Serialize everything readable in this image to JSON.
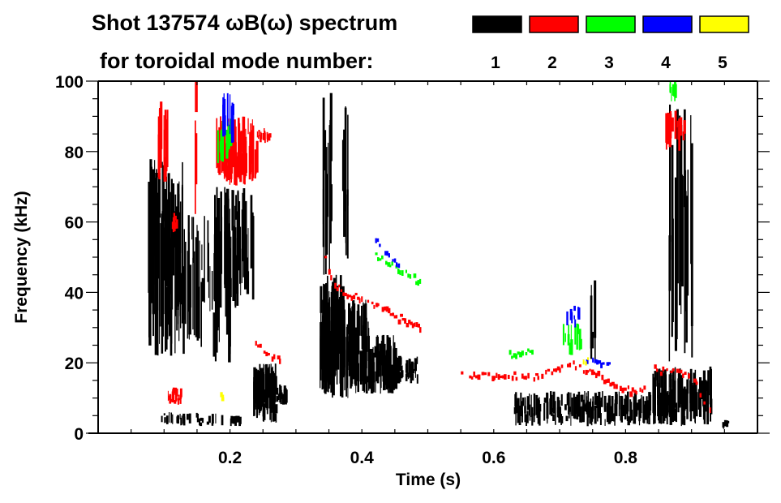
{
  "chart_data": {
    "type": "heatmap",
    "title": "Shot 137574 ωB(ω) spectrum",
    "subtitle": "for toroidal mode number:",
    "xlabel": "Time (s)",
    "ylabel": "Frequency (kHz)",
    "xlim": [
      0,
      1.0
    ],
    "ylim": [
      0,
      100
    ],
    "xticks": [
      0.2,
      0.4,
      0.6,
      0.8
    ],
    "xtick_labels": [
      "0.2",
      "0.4",
      "0.6",
      "0.8"
    ],
    "xminor_step": 0.05,
    "yticks": [
      0,
      20,
      40,
      60,
      80,
      100
    ],
    "ytick_labels": [
      "0",
      "20",
      "40",
      "60",
      "80",
      "100"
    ],
    "yminor_step": 5,
    "legend": {
      "placement": "top-right",
      "entries": [
        {
          "mode": "1",
          "color": "#000000"
        },
        {
          "mode": "2",
          "color": "#ff0000"
        },
        {
          "mode": "3",
          "color": "#00ff00"
        },
        {
          "mode": "4",
          "color": "#0000ff"
        },
        {
          "mode": "5",
          "color": "#ffff00"
        }
      ]
    },
    "regions": [
      {
        "mode": 1,
        "t": [
          0.075,
          0.13
        ],
        "f": [
          22,
          78
        ],
        "density": 90
      },
      {
        "mode": 1,
        "t": [
          0.13,
          0.2
        ],
        "f": [
          20,
          62
        ],
        "density": 45
      },
      {
        "mode": 1,
        "t": [
          0.175,
          0.235
        ],
        "f": [
          35,
          70
        ],
        "density": 70
      },
      {
        "mode": 1,
        "t": [
          0.235,
          0.27
        ],
        "f": [
          3,
          20
        ],
        "density": 70
      },
      {
        "mode": 1,
        "t": [
          0.27,
          0.285
        ],
        "f": [
          8,
          14
        ],
        "density": 20
      },
      {
        "mode": 1,
        "t": [
          0.095,
          0.19
        ],
        "f": [
          2,
          6
        ],
        "density": 30
      },
      {
        "mode": 1,
        "t": [
          0.2,
          0.215
        ],
        "f": [
          2,
          5
        ],
        "density": 15
      },
      {
        "mode": 1,
        "t": [
          0.335,
          0.37
        ],
        "f": [
          10,
          45
        ],
        "density": 80
      },
      {
        "mode": 1,
        "t": [
          0.37,
          0.41
        ],
        "f": [
          10,
          38
        ],
        "density": 80
      },
      {
        "mode": 1,
        "t": [
          0.41,
          0.45
        ],
        "f": [
          11,
          28
        ],
        "density": 60
      },
      {
        "mode": 1,
        "t": [
          0.45,
          0.485
        ],
        "f": [
          14,
          22
        ],
        "density": 35
      },
      {
        "mode": 1,
        "t": [
          0.34,
          0.352
        ],
        "f": [
          40,
          100
        ],
        "density": 12
      },
      {
        "mode": 1,
        "t": [
          0.37,
          0.38
        ],
        "f": [
          45,
          95
        ],
        "density": 8
      },
      {
        "mode": 1,
        "t": [
          0.63,
          0.87
        ],
        "f": [
          2,
          12
        ],
        "density": 200
      },
      {
        "mode": 1,
        "t": [
          0.84,
          0.93
        ],
        "f": [
          2,
          19
        ],
        "density": 90
      },
      {
        "mode": 1,
        "t": [
          0.865,
          0.9
        ],
        "f": [
          20,
          95
        ],
        "density": 25
      },
      {
        "mode": 1,
        "t": [
          0.745,
          0.76
        ],
        "f": [
          20,
          45
        ],
        "density": 6
      },
      {
        "mode": 1,
        "t": [
          0.945,
          0.955
        ],
        "f": [
          1,
          4
        ],
        "density": 6
      },
      {
        "mode": 2,
        "t": [
          0.09,
          0.105
        ],
        "f": [
          70,
          95
        ],
        "density": 18
      },
      {
        "mode": 2,
        "t": [
          0.177,
          0.24
        ],
        "f": [
          70,
          90
        ],
        "density": 80
      },
      {
        "mode": 2,
        "t": [
          0.24,
          0.26
        ],
        "f": [
          82,
          87
        ],
        "density": 15
      },
      {
        "mode": 2,
        "t": [
          0.146,
          0.149
        ],
        "f": [
          55,
          100
        ],
        "density": 3
      },
      {
        "mode": 2,
        "t": [
          0.105,
          0.125
        ],
        "f": [
          8,
          13
        ],
        "density": 20
      },
      {
        "mode": 2,
        "t": [
          0.108,
          0.118
        ],
        "f": [
          57,
          63
        ],
        "density": 8
      },
      {
        "mode": 2,
        "t": [
          0.86,
          0.89
        ],
        "f": [
          80,
          92
        ],
        "density": 20
      },
      {
        "mode": 3,
        "t": [
          0.18,
          0.2
        ],
        "f": [
          76,
          90
        ],
        "density": 18
      },
      {
        "mode": 3,
        "t": [
          0.865,
          0.875
        ],
        "f": [
          94,
          100
        ],
        "density": 8
      },
      {
        "mode": 3,
        "t": [
          0.7,
          0.73
        ],
        "f": [
          22,
          32
        ],
        "density": 14
      },
      {
        "mode": 4,
        "t": [
          0.18,
          0.205
        ],
        "f": [
          82,
          97
        ],
        "density": 12
      },
      {
        "mode": 4,
        "t": [
          0.71,
          0.73
        ],
        "f": [
          30,
          37
        ],
        "density": 8
      }
    ],
    "ridges": [
      {
        "mode": 2,
        "points": [
          [
            0.235,
            25
          ],
          [
            0.26,
            22
          ],
          [
            0.28,
            20
          ]
        ]
      },
      {
        "mode": 2,
        "points": [
          [
            0.34,
            52
          ],
          [
            0.355,
            42
          ],
          [
            0.38,
            39
          ],
          [
            0.43,
            35
          ],
          [
            0.47,
            31
          ],
          [
            0.49,
            30
          ]
        ]
      },
      {
        "mode": 2,
        "points": [
          [
            0.55,
            16
          ],
          [
            0.6,
            16
          ],
          [
            0.66,
            16
          ]
        ]
      },
      {
        "mode": 2,
        "points": [
          [
            0.66,
            16
          ],
          [
            0.72,
            19
          ],
          [
            0.76,
            16
          ],
          [
            0.8,
            12
          ],
          [
            0.83,
            12
          ]
        ]
      },
      {
        "mode": 2,
        "points": [
          [
            0.84,
            18
          ],
          [
            0.88,
            17
          ],
          [
            0.9,
            15
          ],
          [
            0.93,
            5
          ]
        ]
      },
      {
        "mode": 3,
        "points": [
          [
            0.42,
            50
          ],
          [
            0.46,
            46
          ],
          [
            0.49,
            42
          ]
        ]
      },
      {
        "mode": 3,
        "points": [
          [
            0.62,
            22
          ],
          [
            0.66,
            23
          ]
        ]
      },
      {
        "mode": 4,
        "points": [
          [
            0.42,
            55
          ],
          [
            0.44,
            50
          ],
          [
            0.46,
            46
          ]
        ]
      },
      {
        "mode": 4,
        "points": [
          [
            0.74,
            21
          ],
          [
            0.78,
            19
          ]
        ]
      },
      {
        "mode": 5,
        "points": [
          [
            0.735,
            20
          ],
          [
            0.745,
            20
          ]
        ]
      },
      {
        "mode": 5,
        "points": [
          [
            0.185,
            10
          ],
          [
            0.19,
            10
          ]
        ]
      }
    ]
  }
}
